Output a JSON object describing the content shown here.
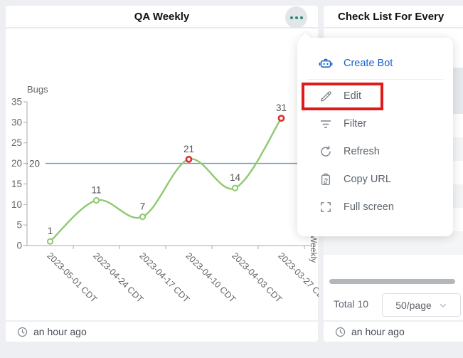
{
  "left_widget": {
    "title": "QA Weekly",
    "footer": {
      "updated": "an hour ago"
    }
  },
  "right_widget": {
    "title": "Check List For Every",
    "pagination": {
      "total_label": "Total 10",
      "page_size": "50/page"
    },
    "footer": {
      "updated": "an hour ago"
    }
  },
  "menu": {
    "items": [
      {
        "label": "Create Bot",
        "icon": "robot-icon"
      },
      {
        "label": "Edit",
        "icon": "pencil-icon"
      },
      {
        "label": "Filter",
        "icon": "filter-icon"
      },
      {
        "label": "Refresh",
        "icon": "refresh-icon"
      },
      {
        "label": "Copy URL",
        "icon": "copy-url-icon"
      },
      {
        "label": "Full screen",
        "icon": "fullscreen-icon"
      }
    ],
    "highlight_color": "#e01a1a",
    "primary_color": "#1a62d2"
  },
  "chart_data": {
    "type": "line",
    "title": "QA Weekly",
    "ylabel": "Bugs",
    "series_name": "Weekly",
    "categories": [
      "2023-05-01 CDT",
      "2023-04-24 CDT",
      "2023-04-17 CDT",
      "2023-04-10 CDT",
      "2023-04-03 CDT",
      "2023-03-27 CDT"
    ],
    "values": [
      1,
      11,
      7,
      21,
      14,
      31
    ],
    "ylim": [
      0,
      35
    ],
    "y_ticks": [
      0,
      5,
      10,
      15,
      20,
      25,
      30,
      35
    ],
    "threshold": 20,
    "smooth": true,
    "grid": false,
    "colors": {
      "line": "#8fc971",
      "point_normal": "#8fc971",
      "point_alert": "#e02b2b",
      "threshold_line": "#6d96c8",
      "axis": "#aaaaaa",
      "label": "#666666"
    }
  }
}
